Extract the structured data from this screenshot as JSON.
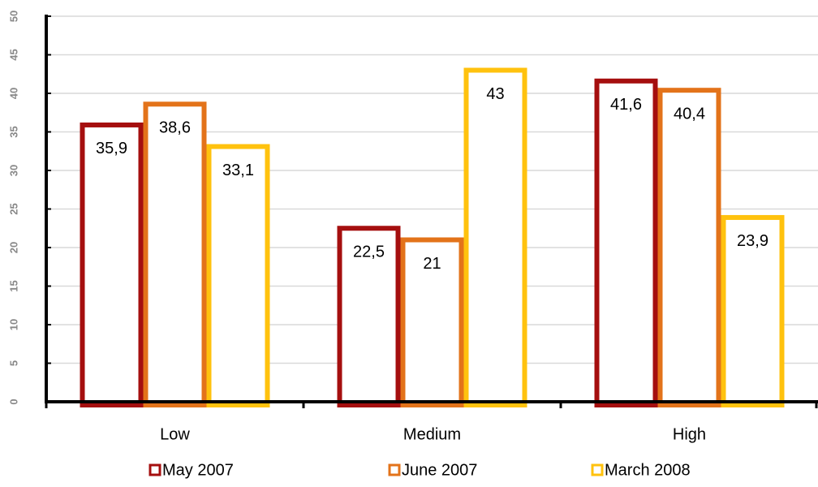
{
  "chart_data": {
    "type": "bar",
    "categories": [
      "Low",
      "Medium",
      "High"
    ],
    "series": [
      {
        "name": "May 2007",
        "color": "#a50f0f",
        "values": [
          35.9,
          22.5,
          41.6
        ],
        "value_labels": [
          "35,9",
          "22,5",
          "41,6"
        ]
      },
      {
        "name": "June 2007",
        "color": "#e3731a",
        "values": [
          38.6,
          21,
          40.4
        ],
        "value_labels": [
          "38,6",
          "21",
          "40,4"
        ]
      },
      {
        "name": "March 2008",
        "color": "#ffc20e",
        "values": [
          33.1,
          43,
          23.9
        ],
        "value_labels": [
          "33,1",
          "43",
          "23,9"
        ]
      }
    ],
    "ylim": [
      0,
      50
    ],
    "yticks": [
      0,
      5,
      10,
      15,
      20,
      25,
      30,
      35,
      40,
      45,
      50
    ],
    "grid": true,
    "legend": "bottom"
  }
}
